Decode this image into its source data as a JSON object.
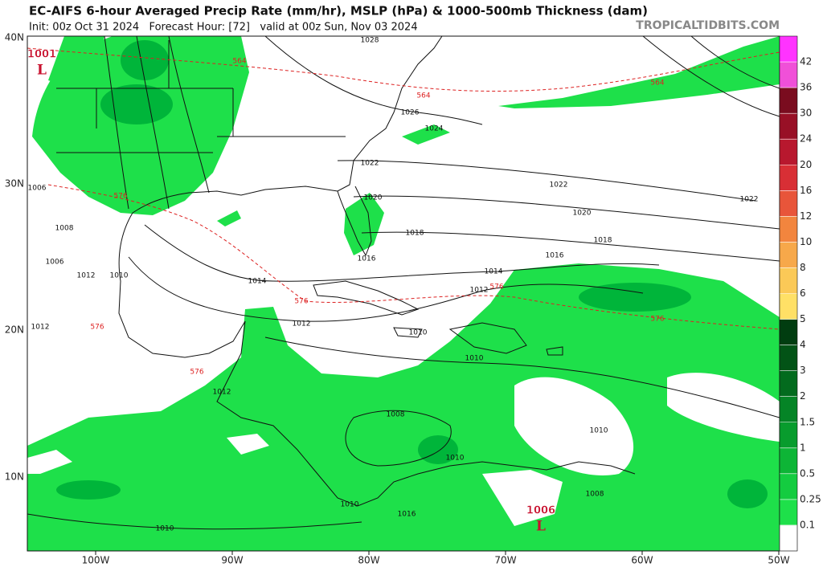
{
  "header": {
    "title": "EC-AIFS 6-hour Averaged Precip Rate (mm/hr), MSLP (hPa) & 1000-500mb Thickness (dam)",
    "subtitle": "Init: 00z Oct 31 2024   Forecast Hour: [72]   valid at 00z Sun, Nov 03 2024",
    "watermark": "TROPICALTIDBITS.COM"
  },
  "map": {
    "lat_labels": [
      "40N",
      "30N",
      "20N",
      "10N"
    ],
    "lon_labels": [
      "100W",
      "90W",
      "80W",
      "70W",
      "60W",
      "50W"
    ],
    "lows": [
      {
        "pressure": 1001,
        "symbol": "L"
      },
      {
        "pressure": 1006,
        "symbol": "L"
      }
    ],
    "isobar_labels": [
      1028,
      1026,
      1024,
      1022,
      1022,
      1022,
      1020,
      1020,
      1018,
      1018,
      1016,
      1016,
      1014,
      1014,
      1012,
      1012,
      1010,
      1010,
      1010,
      1010,
      1008,
      1008,
      1006,
      1006,
      1012,
      1008,
      1010,
      1010,
      1010,
      1012,
      1012,
      1016
    ],
    "thickness_labels": [
      564,
      564,
      564,
      576,
      576,
      576,
      576,
      576,
      576
    ]
  },
  "colorbar": {
    "below_color": "#ffffff",
    "levels": [
      {
        "value": 0.1,
        "color": "#1ee04a"
      },
      {
        "value": 0.25,
        "color": "#14cc40"
      },
      {
        "value": 0.5,
        "color": "#0db536"
      },
      {
        "value": 1,
        "color": "#089c2d"
      },
      {
        "value": 1.5,
        "color": "#058426"
      },
      {
        "value": 2,
        "color": "#036b1e"
      },
      {
        "value": 3,
        "color": "#025316"
      },
      {
        "value": 4,
        "color": "#013d10"
      },
      {
        "value": 5,
        "color": "#ffe066"
      },
      {
        "value": 6,
        "color": "#fbc957"
      },
      {
        "value": 8,
        "color": "#f7a84a"
      },
      {
        "value": 10,
        "color": "#f2853e"
      },
      {
        "value": 12,
        "color": "#e8553a"
      },
      {
        "value": 16,
        "color": "#d82f35"
      },
      {
        "value": 20,
        "color": "#b8182e"
      },
      {
        "value": 24,
        "color": "#981026"
      },
      {
        "value": 30,
        "color": "#7a0c1f"
      },
      {
        "value": 36,
        "color": "#f050d8"
      },
      {
        "value": 42,
        "color": "#ff33ff"
      }
    ]
  }
}
